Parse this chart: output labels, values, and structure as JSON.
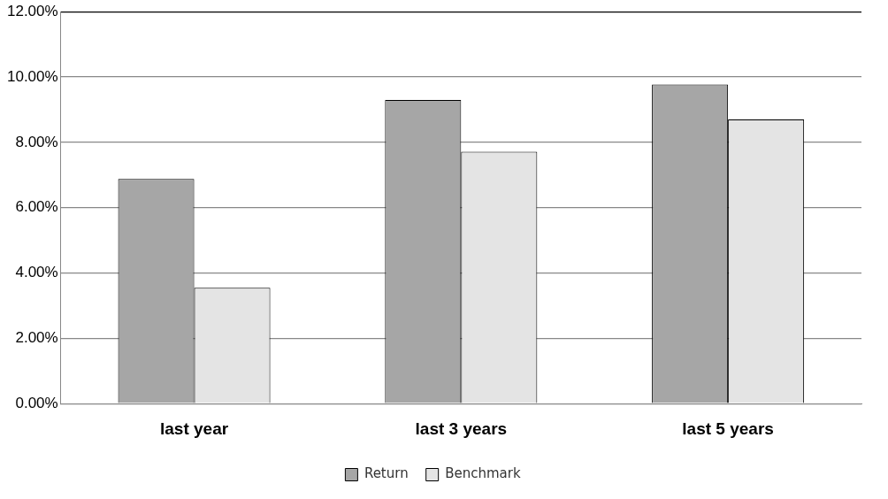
{
  "chart_data": {
    "type": "bar",
    "categories": [
      "last year",
      "last 3 years",
      "last 5 years"
    ],
    "series": [
      {
        "name": "Return",
        "color": "#a6a6a6",
        "values": [
          6.88,
          9.3,
          9.77
        ]
      },
      {
        "name": "Benchmark",
        "color": "#e4e4e4",
        "values": [
          3.55,
          7.71,
          8.7
        ]
      }
    ],
    "ylim": [
      0,
      12
    ],
    "yticks": [
      {
        "value": 0,
        "label": "0.00%"
      },
      {
        "value": 2,
        "label": "2.00%"
      },
      {
        "value": 4,
        "label": "4.00%"
      },
      {
        "value": 6,
        "label": "6.00%"
      },
      {
        "value": 8,
        "label": "8.00%"
      },
      {
        "value": 10,
        "label": "10.00%"
      },
      {
        "value": 12,
        "label": "12.00%"
      }
    ],
    "grid": "y",
    "legend": "bottom"
  }
}
